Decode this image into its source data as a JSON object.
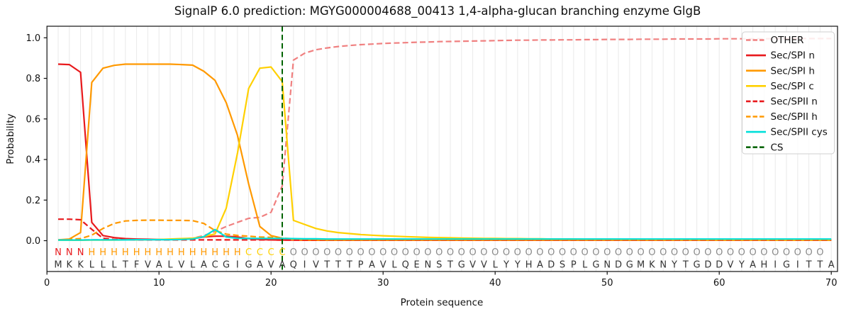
{
  "figure": {
    "title": "SignalP 6.0 prediction: MGYG000004688_00413 1,4-alpha-glucan branching enzyme GlgB",
    "xlabel": "Protein sequence",
    "ylabel": "Probability"
  },
  "style": {
    "axis_color": "#111111",
    "grid_color": "#eaeaea",
    "legend_border": "#cfcfcf",
    "sequence_color": "#333333"
  },
  "chart_data": {
    "type": "line",
    "title": "SignalP 6.0 prediction: MGYG000004688_00413 1,4-alpha-glucan branching enzyme GlgB",
    "xlabel": "Protein sequence",
    "ylabel": "Probability",
    "xlim": [
      0,
      70.5
    ],
    "ylim": [
      -0.153,
      1.057
    ],
    "xticks": [
      0,
      10,
      20,
      30,
      40,
      50,
      60,
      70
    ],
    "yticks": [
      0.0,
      0.2,
      0.4,
      0.6,
      0.8,
      1.0
    ],
    "grid": "vertical line per residue, positions 1-70",
    "legend_position": "upper right",
    "x_positions": "residue index 1..70",
    "sequence": "MKKLLLTFVALVLACGIGAVAQIVTTTPAVLQENSTGVVLYYHADSPLGNDGMKNYTGDDVYAHIGITTA",
    "regions": "NNNHHHHHHHHHHHHHHCCCCOOOOOOOOOOOOOOOOOOOOOOOOOOOOOOOOOOOOOOOOOOOOOOOO",
    "region_colors": {
      "N": "#e8191c",
      "H": "#ff9900",
      "C": "#ffd000",
      "O": "#8a8a8a"
    },
    "cs_marker": {
      "label": "CS",
      "position": 21,
      "color": "#006400",
      "style": "dashed-vertical"
    },
    "series": [
      {
        "name": "OTHER",
        "color": "#f08080",
        "dashed": true,
        "values": [
          0.003,
          0.003,
          0.004,
          0.004,
          0.004,
          0.004,
          0.004,
          0.005,
          0.005,
          0.005,
          0.006,
          0.008,
          0.012,
          0.025,
          0.045,
          0.07,
          0.09,
          0.11,
          0.115,
          0.14,
          0.27,
          0.89,
          0.924,
          0.941,
          0.95,
          0.957,
          0.962,
          0.966,
          0.969,
          0.972,
          0.974,
          0.976,
          0.978,
          0.979,
          0.981,
          0.982,
          0.983,
          0.984,
          0.985,
          0.986,
          0.987,
          0.988,
          0.988,
          0.989,
          0.989,
          0.99,
          0.99,
          0.991,
          0.991,
          0.992,
          0.992,
          0.992,
          0.993,
          0.993,
          0.993,
          0.994,
          0.994,
          0.994,
          0.994,
          0.995,
          0.995,
          0.995,
          0.995,
          0.995,
          0.996,
          0.996,
          0.996,
          0.996,
          0.996,
          0.996
        ]
      },
      {
        "name": "Sec/SPI n",
        "color": "#e8191c",
        "dashed": false,
        "values": [
          0.87,
          0.868,
          0.83,
          0.09,
          0.025,
          0.015,
          0.01,
          0.008,
          0.007,
          0.006,
          0.006,
          0.007,
          0.01,
          0.018,
          0.022,
          0.022,
          0.018,
          0.01,
          0.006,
          0.004,
          0.003,
          0.003,
          0.002,
          0.002,
          0.002,
          0.002,
          0.002,
          0.002,
          0.002,
          0.002,
          0.002,
          0.002,
          0.002,
          0.002,
          0.002,
          0.002,
          0.002,
          0.002,
          0.002,
          0.002,
          0.002,
          0.002,
          0.002,
          0.002,
          0.002,
          0.002,
          0.002,
          0.002,
          0.002,
          0.002,
          0.002,
          0.002,
          0.002,
          0.002,
          0.002,
          0.002,
          0.002,
          0.002,
          0.002,
          0.002,
          0.002,
          0.002,
          0.002,
          0.002,
          0.002,
          0.002,
          0.002,
          0.002,
          0.002,
          0.002
        ]
      },
      {
        "name": "Sec/SPI h",
        "color": "#ff9900",
        "dashed": false,
        "values": [
          0.004,
          0.008,
          0.04,
          0.78,
          0.85,
          0.864,
          0.87,
          0.87,
          0.87,
          0.87,
          0.87,
          0.868,
          0.865,
          0.835,
          0.79,
          0.68,
          0.52,
          0.28,
          0.07,
          0.025,
          0.012,
          0.005,
          0.004,
          0.003,
          0.003,
          0.003,
          0.003,
          0.003,
          0.003,
          0.003,
          0.003,
          0.003,
          0.003,
          0.003,
          0.003,
          0.003,
          0.003,
          0.003,
          0.003,
          0.003,
          0.003,
          0.003,
          0.003,
          0.003,
          0.003,
          0.003,
          0.003,
          0.003,
          0.003,
          0.003,
          0.003,
          0.003,
          0.003,
          0.003,
          0.003,
          0.003,
          0.003,
          0.003,
          0.003,
          0.003,
          0.003,
          0.003,
          0.003,
          0.003,
          0.003,
          0.003,
          0.003,
          0.003,
          0.003,
          0.003
        ]
      },
      {
        "name": "Sec/SPI c",
        "color": "#ffd000",
        "dashed": false,
        "values": [
          0.002,
          0.002,
          0.002,
          0.003,
          0.003,
          0.003,
          0.004,
          0.004,
          0.005,
          0.006,
          0.008,
          0.01,
          0.012,
          0.02,
          0.033,
          0.16,
          0.43,
          0.75,
          0.85,
          0.856,
          0.784,
          0.1,
          0.08,
          0.06,
          0.048,
          0.04,
          0.035,
          0.03,
          0.027,
          0.024,
          0.022,
          0.02,
          0.018,
          0.016,
          0.015,
          0.014,
          0.013,
          0.012,
          0.011,
          0.011,
          0.01,
          0.01,
          0.009,
          0.009,
          0.008,
          0.008,
          0.008,
          0.007,
          0.007,
          0.007,
          0.007,
          0.006,
          0.006,
          0.006,
          0.006,
          0.006,
          0.005,
          0.005,
          0.005,
          0.005,
          0.005,
          0.005,
          0.005,
          0.004,
          0.004,
          0.004,
          0.004,
          0.004,
          0.004,
          0.004
        ]
      },
      {
        "name": "Sec/SPII n",
        "color": "#e8191c",
        "dashed": true,
        "values": [
          0.106,
          0.106,
          0.103,
          0.056,
          0.012,
          0.006,
          0.005,
          0.004,
          0.004,
          0.004,
          0.004,
          0.004,
          0.004,
          0.004,
          0.004,
          0.004,
          0.004,
          0.004,
          0.004,
          0.004,
          0.003,
          0.003,
          0.003,
          0.003,
          0.003,
          0.003,
          0.003,
          0.003,
          0.003,
          0.003,
          0.003,
          0.003,
          0.003,
          0.003,
          0.003,
          0.003,
          0.003,
          0.003,
          0.003,
          0.003,
          0.003,
          0.003,
          0.003,
          0.003,
          0.003,
          0.003,
          0.003,
          0.003,
          0.003,
          0.003,
          0.003,
          0.003,
          0.003,
          0.003,
          0.003,
          0.003,
          0.003,
          0.003,
          0.003,
          0.003,
          0.003,
          0.003,
          0.003,
          0.003,
          0.003,
          0.003,
          0.003,
          0.003,
          0.003,
          0.003
        ]
      },
      {
        "name": "Sec/SPII h",
        "color": "#ff9900",
        "dashed": true,
        "values": [
          0.004,
          0.006,
          0.01,
          0.027,
          0.06,
          0.085,
          0.097,
          0.1,
          0.101,
          0.101,
          0.1,
          0.1,
          0.099,
          0.085,
          0.05,
          0.032,
          0.026,
          0.022,
          0.018,
          0.016,
          0.013,
          0.009,
          0.007,
          0.006,
          0.005,
          0.005,
          0.005,
          0.005,
          0.005,
          0.005,
          0.005,
          0.005,
          0.005,
          0.005,
          0.005,
          0.005,
          0.005,
          0.005,
          0.005,
          0.005,
          0.005,
          0.005,
          0.005,
          0.005,
          0.005,
          0.005,
          0.005,
          0.005,
          0.005,
          0.005,
          0.005,
          0.005,
          0.005,
          0.005,
          0.005,
          0.005,
          0.005,
          0.005,
          0.005,
          0.005,
          0.005,
          0.005,
          0.005,
          0.005,
          0.005,
          0.005,
          0.005,
          0.005,
          0.005,
          0.005
        ]
      },
      {
        "name": "Sec/SPII cys",
        "color": "#00dfda",
        "dashed": false,
        "values": [
          0.003,
          0.003,
          0.003,
          0.004,
          0.004,
          0.004,
          0.004,
          0.005,
          0.005,
          0.005,
          0.005,
          0.006,
          0.008,
          0.02,
          0.055,
          0.018,
          0.012,
          0.011,
          0.011,
          0.011,
          0.011,
          0.01,
          0.009,
          0.009,
          0.008,
          0.008,
          0.008,
          0.008,
          0.008,
          0.008,
          0.008,
          0.008,
          0.008,
          0.008,
          0.008,
          0.008,
          0.008,
          0.008,
          0.008,
          0.008,
          0.008,
          0.008,
          0.008,
          0.008,
          0.008,
          0.008,
          0.008,
          0.008,
          0.008,
          0.008,
          0.008,
          0.008,
          0.008,
          0.008,
          0.008,
          0.008,
          0.008,
          0.008,
          0.008,
          0.008,
          0.008,
          0.008,
          0.008,
          0.008,
          0.008,
          0.008,
          0.008,
          0.008,
          0.008,
          0.008
        ]
      }
    ]
  }
}
